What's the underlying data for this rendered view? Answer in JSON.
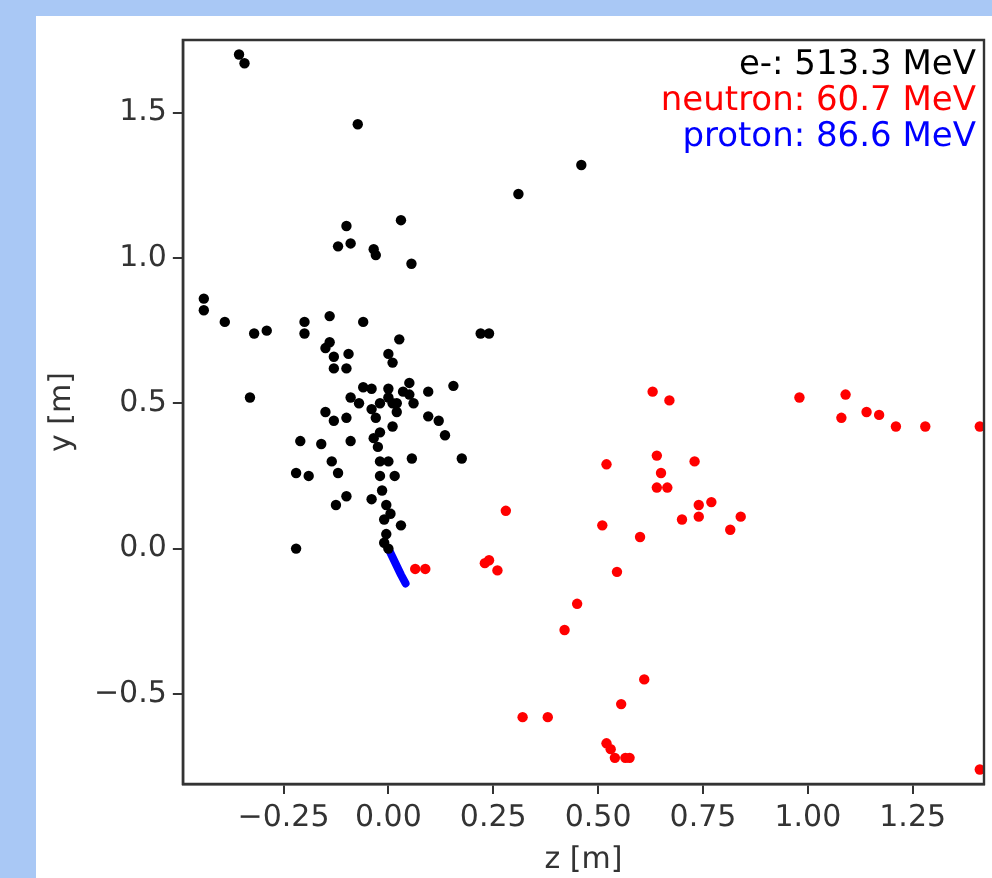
{
  "chart_data": {
    "type": "scatter",
    "xlabel": "z [m]",
    "ylabel": "y [m]",
    "xlim": [
      -0.49,
      1.42
    ],
    "ylim": [
      -0.81,
      1.75
    ],
    "xticks": [
      {
        "value": -0.25,
        "label": "−0.25"
      },
      {
        "value": 0,
        "label": "0.00"
      },
      {
        "value": 0.25,
        "label": "0.25"
      },
      {
        "value": 0.5,
        "label": "0.50"
      },
      {
        "value": 0.75,
        "label": "0.75"
      },
      {
        "value": 1,
        "label": "1.00"
      },
      {
        "value": 1.25,
        "label": "1.25"
      }
    ],
    "yticks": [
      {
        "value": -0.5,
        "label": "−0.5"
      },
      {
        "value": 0,
        "label": "0.0"
      },
      {
        "value": 0.5,
        "label": "0.5"
      },
      {
        "value": 1,
        "label": "1.0"
      },
      {
        "value": 1.5,
        "label": "1.5"
      }
    ],
    "grid": false,
    "legend": "top right",
    "marker": "circle",
    "series": [
      {
        "name": "e-: 513.3 MeV",
        "color": "#000000",
        "x": [
          -0.356,
          -0.343,
          -0.073,
          0.31,
          0.03,
          -0.1,
          -0.12,
          -0.09,
          -0.035,
          -0.03,
          0.055,
          -0.44,
          -0.44,
          -0.39,
          -0.32,
          -0.29,
          -0.2,
          -0.2,
          -0.14,
          -0.06,
          0.026,
          0.22,
          0.24,
          -0.15,
          -0.14,
          -0.13,
          -0.13,
          -0.1,
          -0.095,
          0,
          0.01,
          -0.33,
          -0.06,
          0.05,
          0.095,
          0.155,
          -0.09,
          0,
          0.01,
          -0.15,
          -0.13,
          -0.1,
          -0.21,
          -0.16,
          -0.09,
          0.095,
          0.12,
          0.135,
          0.175,
          0.056,
          -0.135,
          -0.22,
          -0.19,
          -0.12,
          0.015,
          -0.1,
          -0.125,
          -0.04,
          0.03,
          -0.22,
          0,
          -0.005,
          -0.01,
          -0.005,
          -0.015,
          -0.02,
          -0.02,
          -0.025,
          -0.02,
          -0.03,
          -0.02,
          0,
          0.02,
          0.01,
          0,
          -0.04,
          -0.035,
          0.005,
          -0.01,
          -0.07,
          0.035,
          0.05,
          0.06,
          -0.04,
          0.02,
          0.46
        ],
        "values": [
          1.7,
          1.67,
          1.46,
          1.22,
          1.13,
          1.11,
          1.04,
          1.05,
          1.03,
          1.01,
          0.98,
          0.86,
          0.82,
          0.78,
          0.74,
          0.75,
          0.78,
          0.74,
          0.8,
          0.78,
          0.72,
          0.74,
          0.74,
          0.69,
          0.71,
          0.66,
          0.62,
          0.62,
          0.67,
          0.67,
          0.64,
          0.52,
          0.555,
          0.57,
          0.54,
          0.56,
          0.52,
          0.52,
          0.5,
          0.47,
          0.44,
          0.45,
          0.37,
          0.36,
          0.37,
          0.455,
          0.44,
          0.39,
          0.31,
          0.31,
          0.3,
          0.26,
          0.25,
          0.26,
          0.25,
          0.18,
          0.15,
          0.17,
          0.08,
          0,
          0,
          0.05,
          0.1,
          0.15,
          0.2,
          0.25,
          0.3,
          0.35,
          0.4,
          0.45,
          0.5,
          0.55,
          0.5,
          0.42,
          0.3,
          0.48,
          0.38,
          0.12,
          0.02,
          0.5,
          0.54,
          0.53,
          0.5,
          0.55,
          0.47,
          1.32
        ]
      },
      {
        "name": "neutron: 60.7 MeV",
        "color": "#ff0000",
        "x": [
          0.064,
          0.088,
          0.28,
          0.23,
          0.24,
          0.26,
          0.32,
          0.38,
          0.63,
          0.67,
          0.98,
          1.09,
          1.08,
          1.14,
          1.17,
          1.21,
          1.28,
          1.41,
          0.52,
          0.64,
          0.65,
          0.64,
          0.665,
          0.73,
          0.74,
          0.77,
          0.7,
          0.74,
          0.84,
          0.815,
          0.51,
          0.6,
          0.545,
          0.45,
          0.42,
          0.61,
          0.555,
          0.52,
          0.53,
          0.54,
          0.565,
          0.575,
          1.41
        ],
        "values": [
          -0.07,
          -0.07,
          0.13,
          -0.05,
          -0.04,
          -0.075,
          -0.58,
          -0.58,
          0.54,
          0.51,
          0.52,
          0.53,
          0.45,
          0.47,
          0.46,
          0.42,
          0.42,
          0.42,
          0.29,
          0.32,
          0.26,
          0.21,
          0.21,
          0.3,
          0.15,
          0.16,
          0.1,
          0.11,
          0.11,
          0.065,
          0.08,
          0.04,
          -0.08,
          -0.19,
          -0.28,
          -0.45,
          -0.535,
          -0.67,
          -0.69,
          -0.72,
          -0.72,
          -0.72,
          -0.76
        ]
      },
      {
        "name": "proton: 86.6 MeV",
        "color": "#0000ff",
        "type": "line",
        "marker": "none",
        "x": [
          0,
          0.01,
          0.02,
          0.03,
          0.041
        ],
        "values": [
          0,
          -0.03,
          -0.06,
          -0.09,
          -0.12
        ]
      }
    ]
  }
}
